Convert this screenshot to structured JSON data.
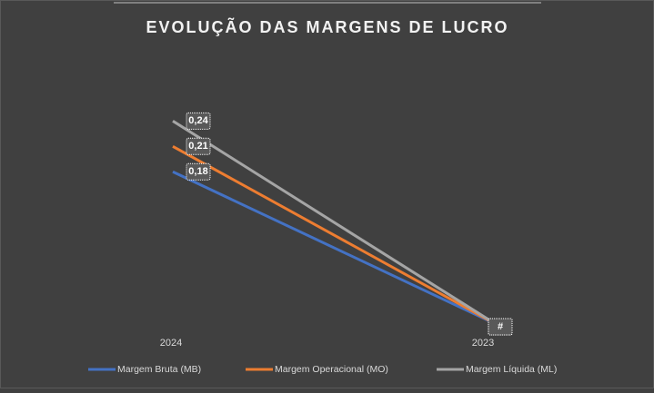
{
  "chart_data": {
    "type": "line",
    "title": "EVOLUÇÃO DAS MARGENS DE LUCRO",
    "categories": [
      "2024",
      "2023"
    ],
    "series": [
      {
        "name": "Margem Bruta (MB)",
        "color": "#4472c4",
        "values": [
          0.18,
          0
        ],
        "value_labels": [
          "0,18",
          "#"
        ]
      },
      {
        "name": "Margem Operacional (MO)",
        "color": "#ed7d31",
        "values": [
          0.21,
          0
        ],
        "value_labels": [
          "0,21",
          "#"
        ]
      },
      {
        "name": "Margem Líquida (ML)",
        "color": "#a5a5a5",
        "values": [
          0.24,
          0
        ],
        "value_labels": [
          "0,24",
          "#"
        ]
      }
    ],
    "ylim": [
      0,
      0.25
    ],
    "legend": "bottom"
  }
}
